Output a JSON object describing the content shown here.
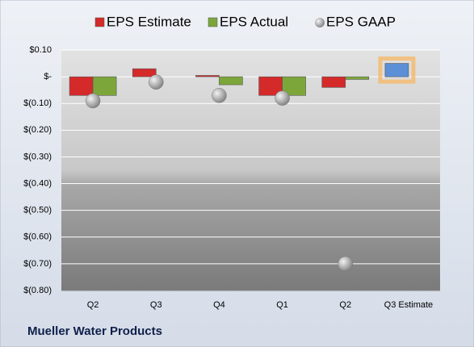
{
  "chart_data": {
    "type": "bar",
    "title": "Mueller Water Products",
    "categories": [
      "Q2",
      "Q3",
      "Q4",
      "Q1",
      "Q2",
      "Q3 Estimate"
    ],
    "series": [
      {
        "name": "EPS Estimate",
        "color": "#d42a2a",
        "point_colors": [
          null,
          null,
          null,
          null,
          null,
          "#5b8fd6"
        ],
        "values": [
          -0.07,
          0.03,
          0.005,
          -0.07,
          -0.04,
          0.05
        ]
      },
      {
        "name": "EPS Actual",
        "color": "#7da63a",
        "values": [
          -0.07,
          null,
          -0.03,
          -0.07,
          -0.01,
          null
        ]
      },
      {
        "name": "EPS GAAP",
        "color": "#a6a6a6",
        "type": "scatter",
        "values": [
          -0.09,
          -0.02,
          -0.07,
          -0.08,
          -0.7,
          null
        ]
      }
    ],
    "ylim": [
      -0.8,
      0.1
    ],
    "yticks": [
      {
        "value": 0.1,
        "label": "$0.10"
      },
      {
        "value": 0,
        "label": "$-"
      },
      {
        "value": -0.1,
        "label": "$(0.10)"
      },
      {
        "value": -0.2,
        "label": "$(0.20)"
      },
      {
        "value": -0.3,
        "label": "$(0.30)"
      },
      {
        "value": -0.4,
        "label": "$(0.40)"
      },
      {
        "value": -0.5,
        "label": "$(0.50)"
      },
      {
        "value": -0.6,
        "label": "$(0.60)"
      },
      {
        "value": -0.7,
        "label": "$(0.70)"
      },
      {
        "value": -0.8,
        "label": "$(0.80)"
      }
    ],
    "grid": true
  }
}
